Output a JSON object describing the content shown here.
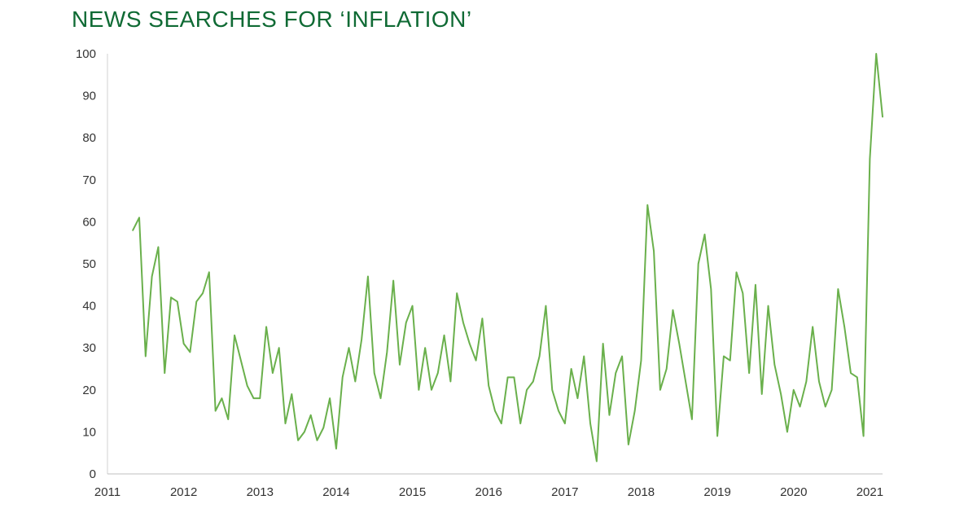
{
  "chart_data": {
    "type": "line",
    "title": "NEWS SEARCHES FOR ‘INFLATION’",
    "xlabel": "",
    "ylabel": "",
    "x_ticks": [
      "2011",
      "2012",
      "2013",
      "2014",
      "2015",
      "2016",
      "2017",
      "2018",
      "2019",
      "2020",
      "2021"
    ],
    "y_ticks": [
      "0",
      "10",
      "20",
      "30",
      "40",
      "50",
      "60",
      "70",
      "80",
      "90",
      "100"
    ],
    "xlim": [
      "2011-01",
      "2021-03"
    ],
    "ylim": [
      0,
      100
    ],
    "grid": false,
    "legend": "none",
    "line_color": "#6ab04c",
    "series": [
      {
        "x": [
          "2011-05",
          "2011-06",
          "2011-07",
          "2011-08",
          "2011-09",
          "2011-10",
          "2011-11",
          "2011-12",
          "2012-01",
          "2012-02",
          "2012-03",
          "2012-04",
          "2012-05",
          "2012-06",
          "2012-07",
          "2012-08",
          "2012-09",
          "2012-10",
          "2012-11",
          "2012-12",
          "2013-01",
          "2013-02",
          "2013-03",
          "2013-04",
          "2013-05",
          "2013-06",
          "2013-07",
          "2013-08",
          "2013-09",
          "2013-10",
          "2013-11",
          "2013-12",
          "2014-01",
          "2014-02",
          "2014-03",
          "2014-04",
          "2014-05",
          "2014-06",
          "2014-07",
          "2014-08",
          "2014-09",
          "2014-10",
          "2014-11",
          "2014-12",
          "2015-01",
          "2015-02",
          "2015-03",
          "2015-04",
          "2015-05",
          "2015-06",
          "2015-07",
          "2015-08",
          "2015-09",
          "2015-10",
          "2015-11",
          "2015-12",
          "2016-01",
          "2016-02",
          "2016-03",
          "2016-04",
          "2016-05",
          "2016-06",
          "2016-07",
          "2016-08",
          "2016-09",
          "2016-10",
          "2016-11",
          "2016-12",
          "2017-01",
          "2017-02",
          "2017-03",
          "2017-04",
          "2017-05",
          "2017-06",
          "2017-07",
          "2017-08",
          "2017-09",
          "2017-10",
          "2017-11",
          "2017-12",
          "2018-01",
          "2018-02",
          "2018-03",
          "2018-04",
          "2018-05",
          "2018-06",
          "2018-07",
          "2018-08",
          "2018-09",
          "2018-10",
          "2018-11",
          "2018-12",
          "2019-01",
          "2019-02",
          "2019-03",
          "2019-04",
          "2019-05",
          "2019-06",
          "2019-07",
          "2019-08",
          "2019-09",
          "2019-10",
          "2019-11",
          "2019-12",
          "2020-01",
          "2020-02",
          "2020-03",
          "2020-04",
          "2020-05",
          "2020-06",
          "2020-07",
          "2020-08",
          "2020-09",
          "2020-10",
          "2020-11",
          "2020-12",
          "2021-01",
          "2021-02",
          "2021-03"
        ],
        "values": [
          58,
          61,
          28,
          47,
          54,
          24,
          42,
          41,
          31,
          29,
          41,
          43,
          48,
          15,
          18,
          13,
          33,
          27,
          21,
          18,
          18,
          35,
          24,
          30,
          12,
          19,
          8,
          10,
          14,
          8,
          11,
          18,
          6,
          23,
          30,
          22,
          32,
          47,
          24,
          18,
          29,
          46,
          26,
          36,
          40,
          20,
          30,
          20,
          24,
          33,
          22,
          43,
          36,
          31,
          27,
          37,
          21,
          15,
          12,
          23,
          23,
          12,
          20,
          22,
          28,
          40,
          20,
          15,
          12,
          25,
          18,
          28,
          12,
          3,
          31,
          14,
          24,
          28,
          7,
          15,
          27,
          64,
          53,
          20,
          25,
          39,
          31,
          22,
          13,
          50,
          57,
          44,
          9,
          28,
          27,
          48,
          43,
          24,
          45,
          19,
          40,
          26,
          19,
          10,
          20,
          16,
          22,
          35,
          22,
          16,
          20,
          44,
          35,
          24,
          23,
          9,
          75,
          100,
          85
        ]
      }
    ]
  }
}
